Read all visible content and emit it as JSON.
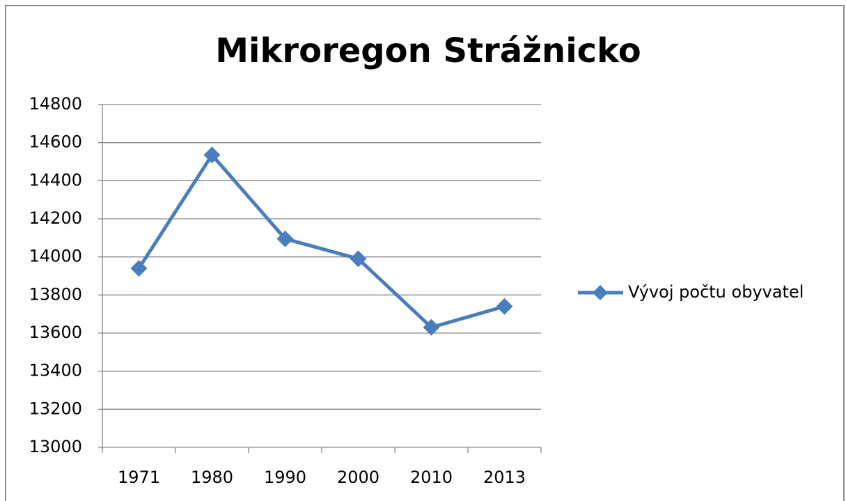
{
  "chart_data": {
    "type": "line",
    "title": "Mikroregon Strážnicko",
    "categories": [
      "1971",
      "1980",
      "1990",
      "2000",
      "2010",
      "2013"
    ],
    "series": [
      {
        "name": "Vývoj počtu obyvatel",
        "color": "#4a7ebb",
        "values": [
          13940,
          14535,
          14095,
          13990,
          13630,
          13740
        ]
      }
    ],
    "ylim": [
      13000,
      14800
    ],
    "yticks": [
      13000,
      13200,
      13400,
      13600,
      13800,
      14000,
      14200,
      14400,
      14600,
      14800
    ],
    "grid": true,
    "legend": "right"
  }
}
